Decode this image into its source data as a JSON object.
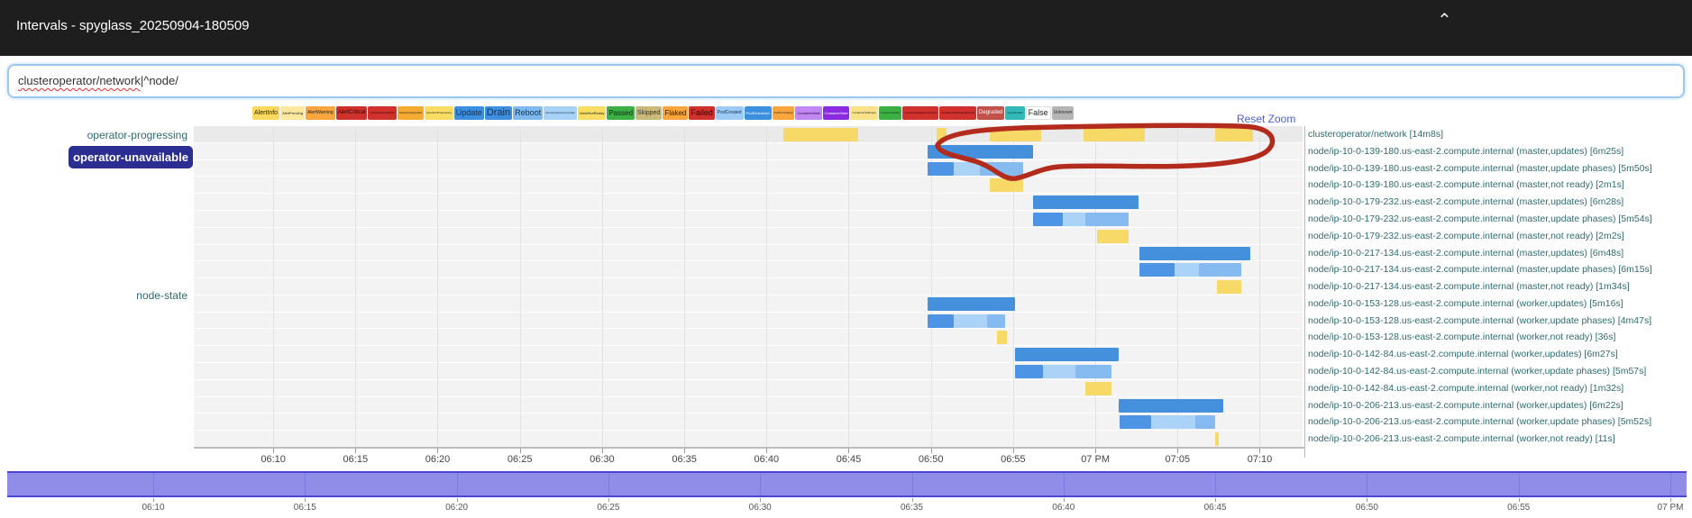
{
  "header": {
    "title": "Intervals - spyglass_20250904-180509",
    "collapse_icon": "chevron-up"
  },
  "search": {
    "value_flagged": "clusteroperator/network",
    "value_rest": "|^node/"
  },
  "legend": {
    "items": [
      {
        "label": "AlertInfo",
        "bg": "#fada5e",
        "fg": "#222",
        "fs": 7
      },
      {
        "label": "AlertPending",
        "bg": "#fee8a0",
        "fg": "#222",
        "fs": 4
      },
      {
        "label": "AlertWarning",
        "bg": "#f8a53d",
        "fg": "#222",
        "fs": 5
      },
      {
        "label": "AlertCritical",
        "bg": "#d0312d",
        "fg": "#2d0505",
        "fs": 6
      },
      {
        "label": "OperatorUnavailable",
        "bg": "#d0312d",
        "fg": "#2d0505",
        "fs": 3
      },
      {
        "label": "OperatorDegraded",
        "bg": "#f5aa31",
        "fg": "#222",
        "fs": 3
      },
      {
        "label": "OperatorProgressing",
        "bg": "#fade64",
        "fg": "#222",
        "fs": 3
      },
      {
        "label": "Update",
        "bg": "#3d8fe0",
        "fg": "#14304f",
        "fs": 9
      },
      {
        "label": "Drain",
        "bg": "#3d8fe0",
        "fg": "#14304f",
        "fs": 11
      },
      {
        "label": "Reboot",
        "bg": "#7db9ee",
        "fg": "#14304f",
        "fs": 9
      },
      {
        "label": "OperatingSystemUpdate",
        "bg": "#a6d2f8",
        "fg": "#14304f",
        "fs": 3
      },
      {
        "label": "NodeNotReady",
        "bg": "#fade64",
        "fg": "#222",
        "fs": 4
      },
      {
        "label": "Passed",
        "bg": "#3cb043",
        "fg": "#0c2e0e",
        "fs": 8
      },
      {
        "label": "Skipped",
        "bg": "#c9ba7a",
        "fg": "#333",
        "fs": 7
      },
      {
        "label": "Flaked",
        "bg": "#f8a53d",
        "fg": "#332200",
        "fs": 8
      },
      {
        "label": "Failed",
        "bg": "#d0312d",
        "fg": "#2d0505",
        "fs": 9
      },
      {
        "label": "PodCreated",
        "bg": "#9ccbf5",
        "fg": "#14304f",
        "fs": 5
      },
      {
        "label": "PodScheduled",
        "bg": "#3d8fe0",
        "fg": "#ffffff",
        "fs": 4
      },
      {
        "label": "PodTerminating",
        "bg": "#f8a53d",
        "fg": "#222",
        "fs": 3
      },
      {
        "label": "ContainerWait",
        "bg": "#c287f2",
        "fg": "#2c0a4d",
        "fs": 4
      },
      {
        "label": "ContainerStart",
        "bg": "#8a2be2",
        "fg": "#ffffff",
        "fs": 4
      },
      {
        "label": "ContainerNotReady",
        "bg": "#fbe289",
        "fg": "#222",
        "fs": 3
      },
      {
        "label": "ContainerReady",
        "bg": "#3cb043",
        "fg": "#0c2e0e",
        "fs": 3
      },
      {
        "label": "ContainerReadinessFailed",
        "bg": "#d0312d",
        "fg": "#2d0505",
        "fs": 3
      },
      {
        "label": "ContainerReadinessErrored",
        "bg": "#d0312d",
        "fg": "#2d0505",
        "fs": 3
      },
      {
        "label": "Degraded",
        "bg": "#c25149",
        "fg": "#ffffff",
        "fs": 6
      },
      {
        "label": "Upgradeable",
        "bg": "#32b8b6",
        "fg": "#073433",
        "fs": 3
      },
      {
        "label": "False",
        "bg": "#ffffff",
        "fg": "#222",
        "fs": 9
      },
      {
        "label": "Unknown",
        "bg": "#b5b5b5",
        "fg": "#333",
        "fs": 5
      }
    ]
  },
  "chart": {
    "reset_zoom_label": "Reset Zoom",
    "left_labels": {
      "row1": "operator-progressing",
      "highlighted": "operator-unavailable",
      "group": "node-state"
    },
    "x_axis_ticks": [
      {
        "t": 10,
        "label": "06:10"
      },
      {
        "t": 15,
        "label": "06:15"
      },
      {
        "t": 20,
        "label": "06:20"
      },
      {
        "t": 25,
        "label": "06:25"
      },
      {
        "t": 30,
        "label": "06:30"
      },
      {
        "t": 35,
        "label": "06:35"
      },
      {
        "t": 40,
        "label": "06:40"
      },
      {
        "t": 45,
        "label": "06:45"
      },
      {
        "t": 50,
        "label": "06:50"
      },
      {
        "t": 55,
        "label": "06:55"
      },
      {
        "t": 60,
        "label": "07 PM"
      },
      {
        "t": 65,
        "label": "07:05"
      },
      {
        "t": 70,
        "label": "07:10"
      }
    ],
    "bar_colors": {
      "progressing": "#f7d967",
      "updates": "#4590dd",
      "drain": "#4e94e4",
      "os_update": "#abd3f8",
      "reboot": "#85bbf1",
      "not_ready": "#f7d967"
    },
    "rows": [
      {
        "label": "clusteroperator/network [14m8s]",
        "bars": [
          {
            "s": 41.0,
            "e": 45.6,
            "k": "progressing"
          },
          {
            "s": 50.35,
            "e": 50.95,
            "k": "progressing"
          },
          {
            "s": 53.6,
            "e": 56.7,
            "k": "progressing"
          },
          {
            "s": 59.3,
            "e": 63.0,
            "k": "progressing"
          },
          {
            "s": 67.3,
            "e": 69.6,
            "k": "progressing"
          }
        ]
      },
      {
        "label": "node/ip-10-0-139-180.us-east-2.compute.internal (master,updates) [6m25s]",
        "bars": [
          {
            "s": 49.8,
            "e": 56.2,
            "k": "updates"
          }
        ]
      },
      {
        "label": "node/ip-10-0-139-180.us-east-2.compute.internal (master,update phases) [5m50s]",
        "bars": [
          {
            "s": 49.8,
            "e": 51.4,
            "k": "drain"
          },
          {
            "s": 51.4,
            "e": 53.0,
            "k": "os_update"
          },
          {
            "s": 53.0,
            "e": 55.6,
            "k": "reboot"
          }
        ]
      },
      {
        "label": "node/ip-10-0-139-180.us-east-2.compute.internal (master,not ready) [2m1s]",
        "bars": [
          {
            "s": 53.6,
            "e": 55.6,
            "k": "not_ready"
          }
        ]
      },
      {
        "label": "node/ip-10-0-179-232.us-east-2.compute.internal (master,updates) [6m28s]",
        "bars": [
          {
            "s": 56.2,
            "e": 62.6,
            "k": "updates"
          }
        ]
      },
      {
        "label": "node/ip-10-0-179-232.us-east-2.compute.internal (master,update phases) [5m54s]",
        "bars": [
          {
            "s": 56.2,
            "e": 58.0,
            "k": "drain"
          },
          {
            "s": 58.0,
            "e": 59.4,
            "k": "os_update"
          },
          {
            "s": 59.4,
            "e": 62.0,
            "k": "reboot"
          }
        ]
      },
      {
        "label": "node/ip-10-0-179-232.us-east-2.compute.internal (master,not ready) [2m2s]",
        "bars": [
          {
            "s": 60.1,
            "e": 62.0,
            "k": "not_ready"
          }
        ]
      },
      {
        "label": "node/ip-10-0-217-134.us-east-2.compute.internal (master,updates) [6m48s]",
        "bars": [
          {
            "s": 62.7,
            "e": 69.4,
            "k": "updates"
          }
        ]
      },
      {
        "label": "node/ip-10-0-217-134.us-east-2.compute.internal (master,update phases) [6m15s]",
        "bars": [
          {
            "s": 62.7,
            "e": 64.8,
            "k": "drain"
          },
          {
            "s": 64.8,
            "e": 66.3,
            "k": "os_update"
          },
          {
            "s": 66.3,
            "e": 68.9,
            "k": "reboot"
          }
        ]
      },
      {
        "label": "node/ip-10-0-217-134.us-east-2.compute.internal (master,not ready) [1m34s]",
        "bars": [
          {
            "s": 67.4,
            "e": 68.9,
            "k": "not_ready"
          }
        ]
      },
      {
        "label": "node/ip-10-0-153-128.us-east-2.compute.internal (worker,updates) [5m16s]",
        "bars": [
          {
            "s": 49.8,
            "e": 55.1,
            "k": "updates"
          }
        ]
      },
      {
        "label": "node/ip-10-0-153-128.us-east-2.compute.internal (worker,update phases) [4m47s]",
        "bars": [
          {
            "s": 49.8,
            "e": 51.4,
            "k": "drain"
          },
          {
            "s": 51.4,
            "e": 53.4,
            "k": "os_update"
          },
          {
            "s": 53.4,
            "e": 54.5,
            "k": "reboot"
          }
        ]
      },
      {
        "label": "node/ip-10-0-153-128.us-east-2.compute.internal (worker,not ready) [36s]",
        "bars": [
          {
            "s": 54.0,
            "e": 54.6,
            "k": "not_ready"
          }
        ]
      },
      {
        "label": "node/ip-10-0-142-84.us-east-2.compute.internal (worker,updates) [6m27s]",
        "bars": [
          {
            "s": 55.1,
            "e": 61.4,
            "k": "updates"
          }
        ]
      },
      {
        "label": "node/ip-10-0-142-84.us-east-2.compute.internal (worker,update phases) [5m57s]",
        "bars": [
          {
            "s": 55.1,
            "e": 56.8,
            "k": "drain"
          },
          {
            "s": 56.8,
            "e": 58.8,
            "k": "os_update"
          },
          {
            "s": 58.8,
            "e": 61.0,
            "k": "reboot"
          }
        ]
      },
      {
        "label": "node/ip-10-0-142-84.us-east-2.compute.internal (worker,not ready) [1m32s]",
        "bars": [
          {
            "s": 59.4,
            "e": 61.0,
            "k": "not_ready"
          }
        ]
      },
      {
        "label": "node/ip-10-0-206-213.us-east-2.compute.internal (worker,updates) [6m22s]",
        "bars": [
          {
            "s": 61.4,
            "e": 67.8,
            "k": "updates"
          }
        ]
      },
      {
        "label": "node/ip-10-0-206-213.us-east-2.compute.internal (worker,update phases) [5m52s]",
        "bars": [
          {
            "s": 61.5,
            "e": 63.4,
            "k": "drain"
          },
          {
            "s": 63.4,
            "e": 66.1,
            "k": "os_update"
          },
          {
            "s": 66.1,
            "e": 67.3,
            "k": "reboot"
          }
        ]
      },
      {
        "label": "node/ip-10-0-206-213.us-east-2.compute.internal (worker,not ready) [11s]",
        "bars": [
          {
            "s": 67.3,
            "e": 67.5,
            "k": "not_ready"
          }
        ]
      }
    ]
  },
  "mini_chart": {
    "ticks": [
      {
        "t": 10,
        "label": "06:10"
      },
      {
        "t": 15,
        "label": "06:15"
      },
      {
        "t": 20,
        "label": "06:20"
      },
      {
        "t": 25,
        "label": "06:25"
      },
      {
        "t": 30,
        "label": "06:30"
      },
      {
        "t": 35,
        "label": "06:35"
      },
      {
        "t": 40,
        "label": "06:40"
      },
      {
        "t": 45,
        "label": "06:45"
      },
      {
        "t": 50,
        "label": "06:50"
      },
      {
        "t": 55,
        "label": "06:55"
      },
      {
        "t": 60,
        "label": "07 PM"
      }
    ]
  },
  "annotation": {
    "shape": "hand-drawn-ellipse",
    "color": "#b32b1d"
  }
}
